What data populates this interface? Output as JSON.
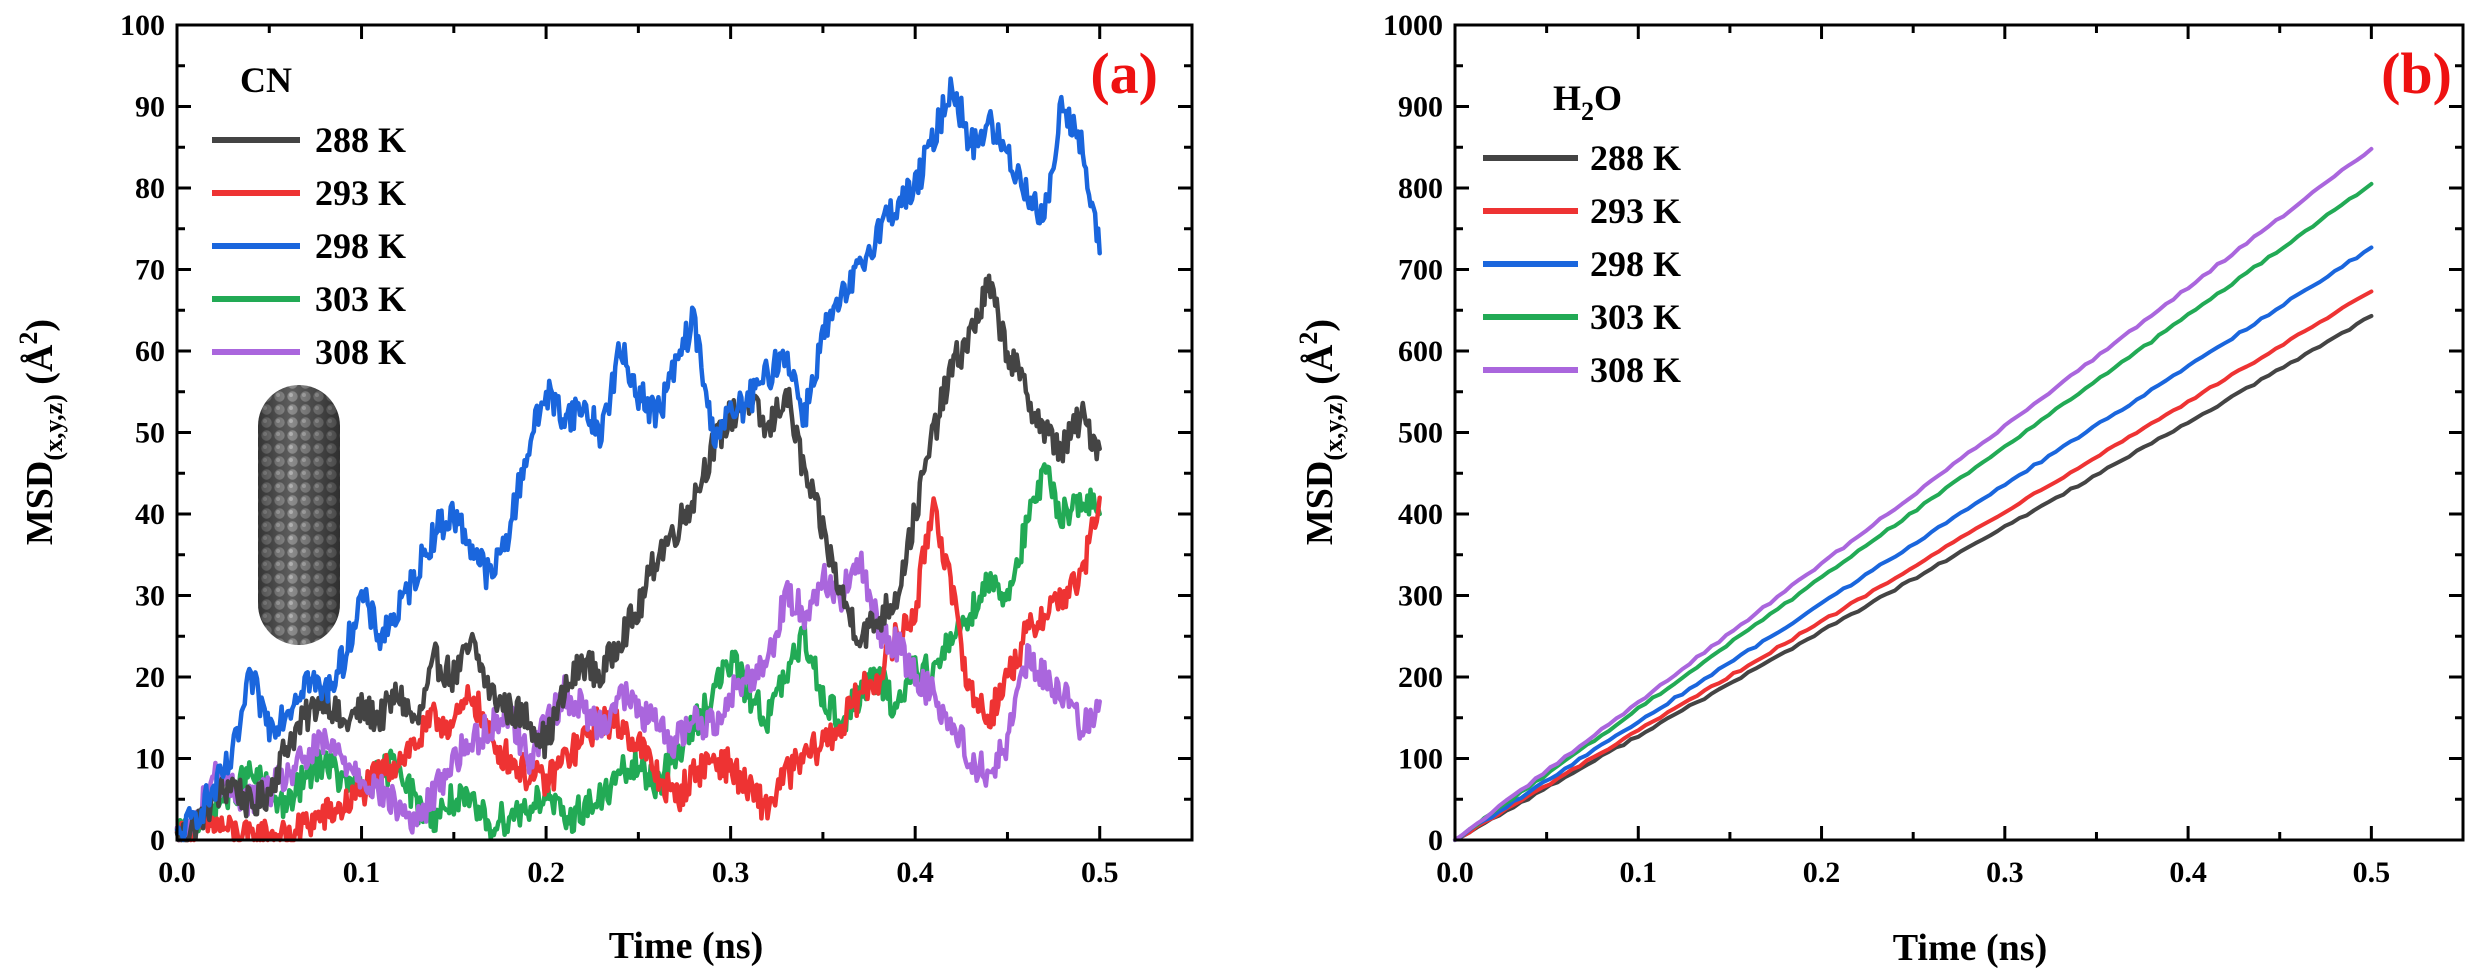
{
  "figure": {
    "panel_a_label": "(a)",
    "panel_b_label": "(b)",
    "label_color": "#ee1111"
  },
  "chart_data": [
    {
      "panel": "(a)",
      "type": "line",
      "title": "",
      "legend_title": "CN",
      "xlabel": "Time (ns)",
      "ylabel_main": "MSD",
      "ylabel_sub": "(x,y,z)",
      "ylabel_unit_open": " (Å",
      "ylabel_unit_sup": "2",
      "ylabel_unit_close": ")",
      "xlim": [
        0,
        0.55
      ],
      "ylim": [
        0,
        100
      ],
      "xticks": [
        0.0,
        0.1,
        0.2,
        0.3,
        0.4,
        0.5
      ],
      "xtick_labels": [
        "0.0",
        "0.1",
        "0.2",
        "0.3",
        "0.4",
        "0.5"
      ],
      "yticks": [
        0,
        10,
        20,
        30,
        40,
        50,
        60,
        70,
        80,
        90,
        100
      ],
      "ytick_labels": [
        "0",
        "10",
        "20",
        "30",
        "40",
        "50",
        "60",
        "70",
        "80",
        "90",
        "100"
      ],
      "grid": false,
      "legend_position": "top-left",
      "inset": "carbon-nanotube-image",
      "x": [
        0.0,
        0.01,
        0.02,
        0.03,
        0.04,
        0.05,
        0.06,
        0.07,
        0.08,
        0.09,
        0.1,
        0.11,
        0.12,
        0.13,
        0.14,
        0.15,
        0.16,
        0.17,
        0.18,
        0.19,
        0.2,
        0.21,
        0.22,
        0.23,
        0.24,
        0.25,
        0.26,
        0.27,
        0.28,
        0.29,
        0.3,
        0.31,
        0.32,
        0.33,
        0.34,
        0.35,
        0.36,
        0.37,
        0.38,
        0.39,
        0.4,
        0.41,
        0.42,
        0.43,
        0.44,
        0.45,
        0.46,
        0.47,
        0.48,
        0.49,
        0.5
      ],
      "series": [
        {
          "name": "288 K",
          "color": "#444444",
          "values": [
            0,
            2,
            5,
            7,
            4,
            6,
            12,
            15,
            18,
            14,
            16,
            15,
            18,
            14,
            22,
            20,
            24,
            18,
            16,
            15,
            12,
            18,
            22,
            20,
            25,
            28,
            35,
            38,
            42,
            48,
            52,
            54,
            50,
            55,
            45,
            38,
            30,
            25,
            27,
            30,
            40,
            50,
            58,
            62,
            68,
            60,
            55,
            50,
            48,
            52,
            48
          ]
        },
        {
          "name": "293 K",
          "color": "#ee3333",
          "values": [
            0,
            1,
            2,
            1,
            0,
            1,
            0,
            2,
            3,
            4,
            6,
            8,
            10,
            12,
            15,
            14,
            18,
            12,
            10,
            8,
            7,
            10,
            12,
            15,
            14,
            12,
            8,
            5,
            8,
            10,
            9,
            6,
            4,
            8,
            10,
            12,
            14,
            18,
            20,
            25,
            28,
            42,
            30,
            18,
            15,
            20,
            25,
            28,
            30,
            32,
            42
          ]
        },
        {
          "name": "298 K",
          "color": "#1a66dd",
          "values": [
            0,
            3,
            6,
            10,
            20,
            14,
            16,
            20,
            18,
            22,
            30,
            25,
            28,
            33,
            38,
            40,
            36,
            32,
            38,
            48,
            55,
            52,
            53,
            50,
            60,
            55,
            52,
            58,
            64,
            50,
            52,
            54,
            57,
            60,
            52,
            62,
            66,
            70,
            75,
            78,
            80,
            86,
            93,
            85,
            88,
            84,
            80,
            76,
            91,
            85,
            72
          ]
        },
        {
          "name": "303 K",
          "color": "#22aa55",
          "values": [
            0,
            2,
            4,
            6,
            8,
            6,
            4,
            8,
            10,
            7,
            6,
            8,
            10,
            4,
            3,
            5,
            4,
            2,
            3,
            4,
            6,
            2,
            4,
            5,
            8,
            9,
            7,
            10,
            14,
            18,
            22,
            18,
            15,
            20,
            25,
            18,
            14,
            18,
            20,
            16,
            22,
            20,
            25,
            28,
            32,
            30,
            38,
            45,
            40,
            42,
            40
          ]
        },
        {
          "name": "308 K",
          "color": "#aa66dd",
          "values": [
            0,
            2,
            8,
            6,
            5,
            6,
            8,
            10,
            12,
            10,
            8,
            6,
            4,
            2,
            6,
            10,
            12,
            14,
            16,
            10,
            14,
            18,
            16,
            14,
            18,
            16,
            14,
            12,
            15,
            14,
            18,
            20,
            22,
            30,
            28,
            32,
            30,
            34,
            26,
            24,
            20,
            18,
            14,
            10,
            8,
            12,
            22,
            20,
            18,
            14,
            17
          ]
        }
      ]
    },
    {
      "panel": "(b)",
      "type": "line",
      "title": "",
      "legend_title_main": "H",
      "legend_title_sub": "2",
      "legend_title_end": "O",
      "xlabel": "Time (ns)",
      "ylabel_main": "MSD",
      "ylabel_sub": "(x,y,z)",
      "ylabel_unit_open": " (Å",
      "ylabel_unit_sup": "2",
      "ylabel_unit_close": ")",
      "xlim": [
        0,
        0.55
      ],
      "ylim": [
        0,
        1000
      ],
      "xticks": [
        0.0,
        0.1,
        0.2,
        0.3,
        0.4,
        0.5
      ],
      "xtick_labels": [
        "0.0",
        "0.1",
        "0.2",
        "0.3",
        "0.4",
        "0.5"
      ],
      "yticks": [
        0,
        100,
        200,
        300,
        400,
        500,
        600,
        700,
        800,
        900,
        1000
      ],
      "ytick_labels": [
        "0",
        "100",
        "200",
        "300",
        "400",
        "500",
        "600",
        "700",
        "800",
        "900",
        "1000"
      ],
      "grid": false,
      "legend_position": "top-left",
      "x": [
        0.0,
        0.1,
        0.2,
        0.3,
        0.4,
        0.5
      ],
      "series": [
        {
          "name": "288 K",
          "color": "#444444",
          "values": [
            0,
            128,
            256,
            384,
            512,
            643
          ]
        },
        {
          "name": "293 K",
          "color": "#ee3333",
          "values": [
            0,
            134,
            268,
            403,
            538,
            673
          ]
        },
        {
          "name": "298 K",
          "color": "#1a66dd",
          "values": [
            0,
            145,
            290,
            436,
            581,
            727
          ]
        },
        {
          "name": "303 K",
          "color": "#22aa55",
          "values": [
            0,
            161,
            322,
            483,
            644,
            805
          ]
        },
        {
          "name": "308 K",
          "color": "#aa66dd",
          "values": [
            0,
            169,
            339,
            508,
            678,
            848
          ]
        }
      ]
    }
  ]
}
